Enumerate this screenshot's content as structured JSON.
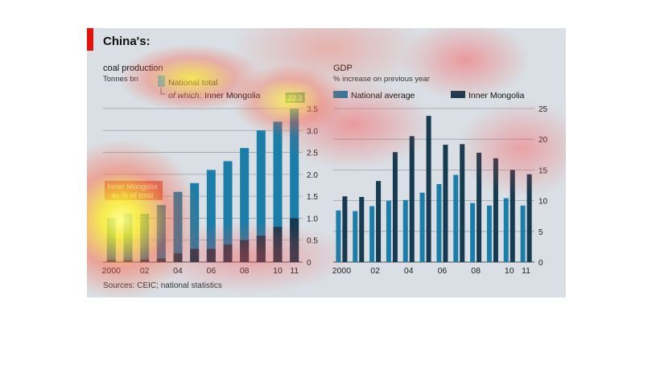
{
  "figure": {
    "title": "China's:",
    "source": "Sources: CEIC; national statistics",
    "colors": {
      "background": "#d9dfe4",
      "accent": "#e3120b",
      "national": "#1a7ea8",
      "mongolia": "#163a4f",
      "national_total_swatch": "#4ec4e6",
      "share_box": "#c96a4a"
    }
  },
  "chart_data": [
    {
      "type": "bar",
      "title": "coal production",
      "ylabel": "Tonnes bn",
      "categories": [
        "2000",
        "2001",
        "2002",
        "2003",
        "2004",
        "2005",
        "2006",
        "2007",
        "2008",
        "2009",
        "2010",
        "2011"
      ],
      "x_tick_labels": [
        "2000",
        "",
        "02",
        "",
        "04",
        "",
        "06",
        "",
        "08",
        "",
        "10",
        "11"
      ],
      "series": [
        {
          "name": "National total",
          "values": [
            1.0,
            1.1,
            1.1,
            1.3,
            1.6,
            1.8,
            2.1,
            2.3,
            2.6,
            3.0,
            3.2,
            3.5
          ]
        },
        {
          "name": "Inner Mongolia",
          "values": [
            0.05,
            0.05,
            0.06,
            0.08,
            0.2,
            0.3,
            0.3,
            0.4,
            0.5,
            0.6,
            0.8,
            1.0
          ]
        }
      ],
      "legend": {
        "total": "National total",
        "of_which_prefix": "of which:",
        "of_which_name": "Inner Mongolia"
      },
      "share_label_line1": "Inner Mongolia",
      "share_label_line2": "as % of total",
      "data_label": "22.3",
      "yticks": [
        0,
        0.5,
        1.0,
        1.5,
        2.0,
        2.5,
        3.0,
        3.5
      ],
      "ytick_labels": [
        "0",
        "0.5",
        "1.0",
        "1.5",
        "2.0",
        "2.5",
        "3.0",
        "3.5"
      ],
      "ylim": [
        0,
        3.5
      ],
      "grid": true
    },
    {
      "type": "bar",
      "title": "GDP",
      "ylabel": "% increase on previous year",
      "categories": [
        "2000",
        "2001",
        "2002",
        "2003",
        "2004",
        "2005",
        "2006",
        "2007",
        "2008",
        "2009",
        "2010",
        "2011"
      ],
      "x_tick_labels": [
        "2000",
        "",
        "02",
        "",
        "04",
        "",
        "06",
        "",
        "08",
        "",
        "10",
        "11"
      ],
      "series": [
        {
          "name": "National average",
          "values": [
            8.4,
            8.3,
            9.1,
            10.0,
            10.1,
            11.3,
            12.7,
            14.2,
            9.6,
            9.2,
            10.4,
            9.2
          ]
        },
        {
          "name": "Inner Mongolia",
          "values": [
            10.7,
            10.6,
            13.2,
            17.9,
            20.5,
            23.8,
            19.1,
            19.2,
            17.8,
            16.9,
            15.0,
            14.3
          ]
        }
      ],
      "yticks": [
        0,
        5,
        10,
        15,
        20,
        25
      ],
      "ytick_labels": [
        "0",
        "5",
        "10",
        "15",
        "20",
        "25"
      ],
      "ylim": [
        0,
        25
      ],
      "grid": true
    }
  ]
}
